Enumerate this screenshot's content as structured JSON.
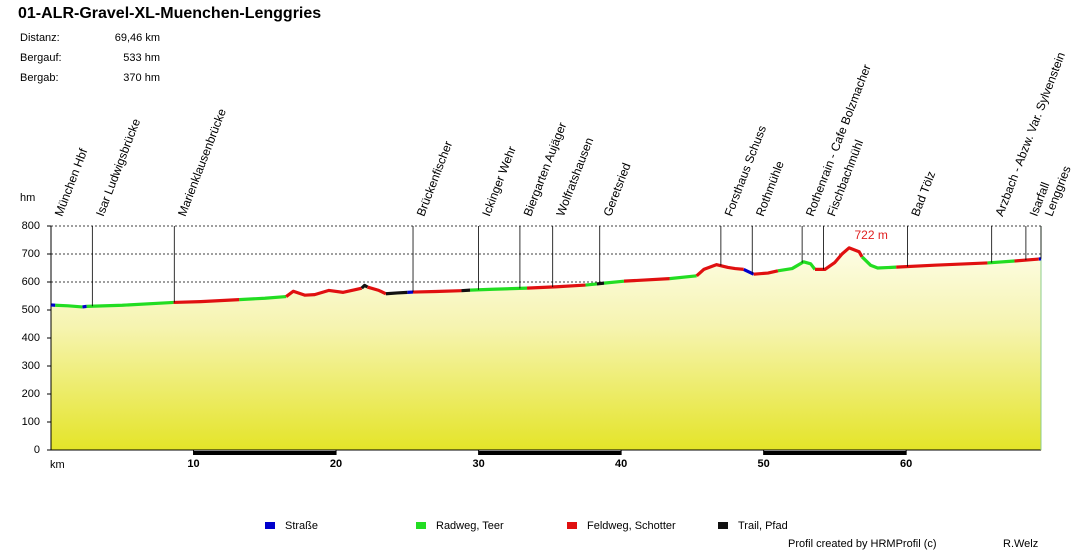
{
  "chart_data": {
    "type": "area",
    "title": "01-ALR-Gravel-XL-Muenchen-Lenggries",
    "stats": [
      {
        "label": "Distanz:",
        "value": "69,46 km"
      },
      {
        "label": "Bergauf:",
        "value": "533 hm"
      },
      {
        "label": "Bergab:",
        "value": "370 hm"
      }
    ],
    "ylabel": "hm",
    "xlabel": "km",
    "xlim": [
      0,
      69.46
    ],
    "ylim": [
      0,
      800
    ],
    "xticks": [
      10,
      20,
      30,
      40,
      50,
      60
    ],
    "yticks": [
      0,
      100,
      200,
      300,
      400,
      500,
      600,
      700,
      800
    ],
    "grid": true,
    "waypoints": [
      {
        "name": "München Hbf",
        "km": 0
      },
      {
        "name": "Isar Ludwigsbrücke",
        "km": 2.9
      },
      {
        "name": "Marienklausenbrücke",
        "km": 8.65
      },
      {
        "name": "Brückenfischer",
        "km": 25.4
      },
      {
        "name": "Ickinger Wehr",
        "km": 30.0
      },
      {
        "name": "Biergarten Aujäger",
        "km": 32.9
      },
      {
        "name": "Wolfratshausen",
        "km": 35.2
      },
      {
        "name": "Geretsried",
        "km": 38.5
      },
      {
        "name": "Forsthaus Schuss",
        "km": 47.0
      },
      {
        "name": "Rothmühle",
        "km": 49.2
      },
      {
        "name": "Rothenrain - Cafe Bolzmacher",
        "km": 52.7
      },
      {
        "name": "Fischbachmühl",
        "km": 54.2
      },
      {
        "name": "Bad Tölz",
        "km": 60.1
      },
      {
        "name": "Arzbach - Abzw. Var. Sylvenstein",
        "km": 66.0
      },
      {
        "name": "Isarfall",
        "km": 68.4
      },
      {
        "name": "Lenggries",
        "km": 69.46
      }
    ],
    "annotations": [
      {
        "text": "722 m",
        "x": 56,
        "y": 722,
        "color": "#e02020"
      }
    ],
    "series": [
      {
        "name": "Straße",
        "color": "#0000cc",
        "x": [
          0,
          0.3,
          null,
          2.2,
          2.5,
          null,
          25,
          25.4,
          null,
          48.6,
          49.3,
          null,
          69.3,
          69.46
        ],
        "values": [
          518,
          517,
          null,
          511,
          513,
          null,
          563,
          564,
          null,
          645,
          628,
          null,
          682,
          683
        ]
      },
      {
        "name": "Radweg, Teer",
        "color": "#22dd22",
        "x": [
          0.3,
          1.2,
          2.2,
          null,
          2.5,
          5,
          8.6,
          null,
          13.2,
          15,
          16.5,
          null,
          29.4,
          31,
          33.4,
          null,
          37.5,
          38.3,
          null,
          38.8,
          40.2,
          null,
          43.4,
          45.3,
          null,
          51,
          52,
          52.8,
          53.3,
          53.6,
          null,
          56.9,
          57.5,
          58,
          59.3,
          null,
          65.7,
          67.6
        ],
        "values": [
          517,
          515,
          511,
          null,
          513,
          517,
          527,
          null,
          537,
          542,
          548,
          null,
          571,
          574,
          578,
          null,
          589,
          593,
          null,
          596,
          603,
          null,
          612,
          622,
          null,
          640,
          648,
          672,
          665,
          645,
          null,
          690,
          660,
          650,
          653,
          null,
          668,
          675
        ]
      },
      {
        "name": "Feldweg, Schotter",
        "color": "#e01010",
        "x": [
          8.6,
          10.5,
          13.2,
          null,
          16.5,
          17,
          17.8,
          18.5,
          19.5,
          20.5,
          21.3,
          21.8,
          null,
          22.2,
          23,
          23.5,
          null,
          25.4,
          27,
          28.8,
          null,
          33.4,
          35.5,
          37.5,
          null,
          40.2,
          43.4,
          null,
          45.3,
          45.8,
          46.7,
          47.5,
          48,
          48.6,
          null,
          49.3,
          50.3,
          51,
          null,
          53.6,
          54.3,
          55,
          55.5,
          56,
          56.7,
          56.9,
          null,
          59.3,
          62,
          65.7,
          null,
          67.6,
          69.3
        ],
        "values": [
          527,
          530,
          537,
          null,
          548,
          567,
          553,
          555,
          570,
          563,
          572,
          578,
          null,
          582,
          570,
          558,
          null,
          564,
          566,
          569,
          null,
          578,
          583,
          589,
          null,
          603,
          612,
          null,
          622,
          645,
          662,
          652,
          648,
          645,
          null,
          628,
          632,
          640,
          null,
          645,
          645,
          670,
          700,
          722,
          708,
          690,
          null,
          653,
          660,
          668,
          null,
          675,
          682
        ]
      },
      {
        "name": "Trail, Pfad",
        "color": "#111111",
        "x": [
          21.8,
          22,
          22.2,
          null,
          23.5,
          24.3,
          25,
          null,
          28.8,
          29.4,
          null,
          38.3,
          38.8
        ],
        "values": [
          578,
          588,
          582,
          null,
          558,
          561,
          563,
          null,
          569,
          571,
          null,
          593,
          596
        ]
      }
    ],
    "credit": "Profil created by HRMProfil (c)",
    "author": "R.Welz"
  }
}
